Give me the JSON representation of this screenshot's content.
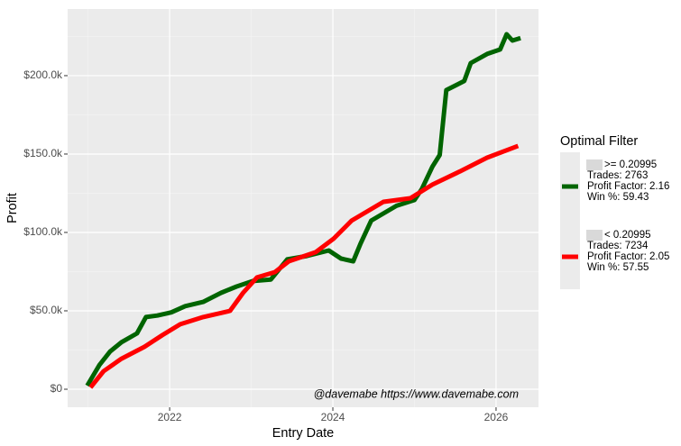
{
  "chart_data": {
    "type": "line",
    "x_label": "Entry Date",
    "y_label": "Profit",
    "annotation": "@davemabe https://www.davemabe.com",
    "legend_title": "Optimal Filter",
    "legend_position": "right",
    "grid": true,
    "xlim": [
      2020.75,
      2026.52
    ],
    "xticks": [
      2022,
      2024,
      2026
    ],
    "x_minor_ticks": [
      2021,
      2023,
      2025
    ],
    "ylim": [
      -11500,
      242500
    ],
    "yticks": [
      {
        "value": 0,
        "label": "$0"
      },
      {
        "value": 50000,
        "label": "$50.0k"
      },
      {
        "value": 100000,
        "label": "$100.0k"
      },
      {
        "value": 150000,
        "label": "$150.0k"
      },
      {
        "value": 200000,
        "label": "$200.0k"
      }
    ],
    "y_minor_ticks": [
      25000,
      75000,
      125000,
      175000,
      225000
    ],
    "series": [
      {
        "name": ">= 0.20995",
        "legend_lines": [
          "Trades: 2763",
          "Profit Factor: 2.16",
          "Win %: 59.43"
        ],
        "color": "#006400",
        "x": [
          2020.99,
          2021.14,
          2021.27,
          2021.41,
          2021.6,
          2021.71,
          2021.85,
          2022.02,
          2022.19,
          2022.41,
          2022.63,
          2022.82,
          2023.02,
          2023.24,
          2023.44,
          2023.68,
          2023.95,
          2024.1,
          2024.25,
          2024.34,
          2024.47,
          2024.78,
          2025.0,
          2025.09,
          2025.22,
          2025.31,
          2025.39,
          2025.61,
          2025.69,
          2025.89,
          2026.05,
          2026.13,
          2026.2,
          2026.3
        ],
        "values": [
          2300,
          15500,
          24000,
          30000,
          35600,
          46000,
          47000,
          49000,
          53000,
          55700,
          61500,
          65500,
          69000,
          70000,
          82800,
          85000,
          88500,
          83300,
          81600,
          93000,
          107500,
          117000,
          120700,
          127600,
          142000,
          149400,
          190800,
          196600,
          208000,
          213800,
          216700,
          226400,
          222400,
          224000
        ]
      },
      {
        "name": "< 0.20995",
        "legend_lines": [
          "Trades: 7234",
          "Profit Factor: 2.05",
          "Win %: 57.55"
        ],
        "color": "#ff0000",
        "x": [
          2021.03,
          2021.19,
          2021.41,
          2021.69,
          2021.91,
          2022.13,
          2022.41,
          2022.74,
          2022.9,
          2023.07,
          2023.29,
          2023.46,
          2023.79,
          2024.01,
          2024.23,
          2024.62,
          2024.95,
          2025.22,
          2025.56,
          2025.89,
          2026.27
        ],
        "values": [
          1100,
          11500,
          19500,
          27000,
          34500,
          41400,
          46000,
          50000,
          61500,
          71300,
          74700,
          81600,
          87400,
          96000,
          107500,
          119500,
          121800,
          130500,
          139000,
          147700,
          155200
        ]
      }
    ]
  }
}
